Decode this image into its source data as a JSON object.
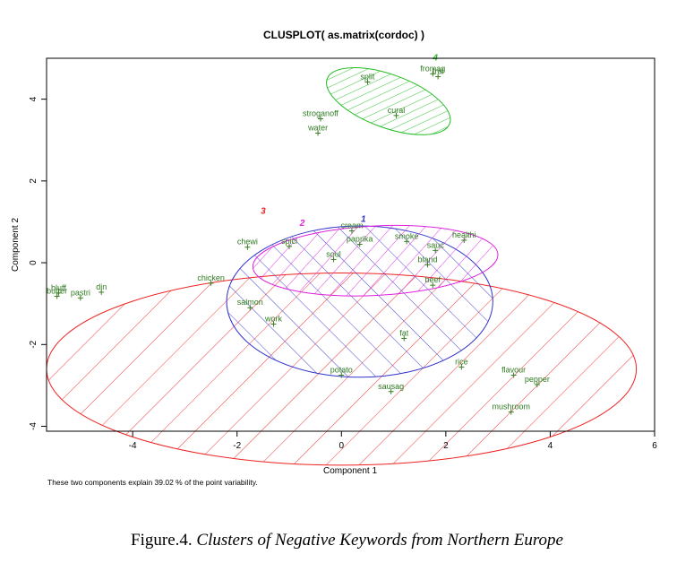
{
  "chart_data": {
    "type": "scatter",
    "title": "CLUSPLOT( as.matrix(cordoc) )",
    "xlabel": "Component 1",
    "ylabel": "Component 2",
    "xlim": [
      -5.65,
      6.0
    ],
    "ylim": [
      -4.12,
      5.0
    ],
    "x_ticks": [
      -4,
      -2,
      0,
      2,
      4,
      6
    ],
    "x_tick_labels": [
      "-4",
      "-2",
      "0",
      "2",
      "4",
      "6"
    ],
    "y_ticks": [
      -4,
      -2,
      0,
      2,
      4
    ],
    "y_tick_labels": [
      "-4",
      "-2",
      "0",
      "2",
      "4"
    ],
    "footnote": "These two components explain 39.02 % of the point variability.",
    "clusters": [
      {
        "label": "1",
        "color": "#3333cc",
        "center": [
          0.35,
          -0.95
        ],
        "radii": [
          2.55,
          1.85
        ],
        "angle_deg": 0,
        "label_pos": [
          0.42,
          1.0
        ]
      },
      {
        "label": "2",
        "color": "#dd22dd",
        "center": [
          0.65,
          0.05
        ],
        "radii": [
          2.35,
          0.85
        ],
        "angle_deg": -3,
        "label_pos": [
          -0.75,
          0.9
        ]
      },
      {
        "label": "3",
        "color": "#ee2222",
        "center": [
          0.0,
          -2.6
        ],
        "radii": [
          5.65,
          2.35
        ],
        "angle_deg": 0,
        "label_pos": [
          -1.5,
          1.2
        ]
      },
      {
        "label": "4",
        "color": "#22bb22",
        "center": [
          0.9,
          3.95
        ],
        "radii": [
          1.25,
          0.65
        ],
        "angle_deg": 20,
        "label_pos": [
          1.8,
          4.95
        ]
      }
    ],
    "points": [
      {
        "label": "butter",
        "x": -5.45,
        "y": -0.82
      },
      {
        "label": "bluff",
        "x": -5.42,
        "y": -0.74
      },
      {
        "label": "pastri",
        "x": -5.0,
        "y": -0.86
      },
      {
        "label": "din",
        "x": -4.6,
        "y": -0.72
      },
      {
        "label": "chicken",
        "x": -2.5,
        "y": -0.5
      },
      {
        "label": "chewi",
        "x": -1.8,
        "y": 0.38
      },
      {
        "label": "spici",
        "x": -1.0,
        "y": 0.4
      },
      {
        "label": "salmon",
        "x": -1.75,
        "y": -1.1
      },
      {
        "label": "work",
        "x": -1.3,
        "y": -1.5
      },
      {
        "label": "soul",
        "x": -0.15,
        "y": 0.08
      },
      {
        "label": "cream",
        "x": 0.2,
        "y": 0.78
      },
      {
        "label": "paprika",
        "x": 0.35,
        "y": 0.45
      },
      {
        "label": "smoke",
        "x": 1.25,
        "y": 0.52
      },
      {
        "label": "sauc",
        "x": 1.8,
        "y": 0.3
      },
      {
        "label": "healthi",
        "x": 2.35,
        "y": 0.55
      },
      {
        "label": "bland",
        "x": 1.65,
        "y": -0.05
      },
      {
        "label": "beef",
        "x": 1.75,
        "y": -0.55
      },
      {
        "label": "fat",
        "x": 1.2,
        "y": -1.85
      },
      {
        "label": "potato",
        "x": 0.0,
        "y": -2.75
      },
      {
        "label": "sausag",
        "x": 0.95,
        "y": -3.15
      },
      {
        "label": "rice",
        "x": 2.3,
        "y": -2.55
      },
      {
        "label": "flavour",
        "x": 3.3,
        "y": -2.75
      },
      {
        "label": "pepper",
        "x": 3.75,
        "y": -2.98
      },
      {
        "label": "mushroom",
        "x": 3.25,
        "y": -3.65
      },
      {
        "label": "split",
        "x": 0.5,
        "y": 4.42
      },
      {
        "label": "stroganoff",
        "x": -0.4,
        "y": 3.52
      },
      {
        "label": "water",
        "x": -0.45,
        "y": 3.17
      },
      {
        "label": "cural",
        "x": 1.05,
        "y": 3.6
      },
      {
        "label": "fromag",
        "x": 1.75,
        "y": 4.62
      },
      {
        "label": "fral",
        "x": 1.85,
        "y": 4.55
      }
    ]
  },
  "figure_caption": {
    "prefix": "Figure.4. ",
    "title": "Clusters of Negative Keywords from Northern Europe"
  },
  "colors": {
    "axes": "#000000",
    "point_marker": "#3a7d22",
    "point_label": "#2e7a20"
  }
}
